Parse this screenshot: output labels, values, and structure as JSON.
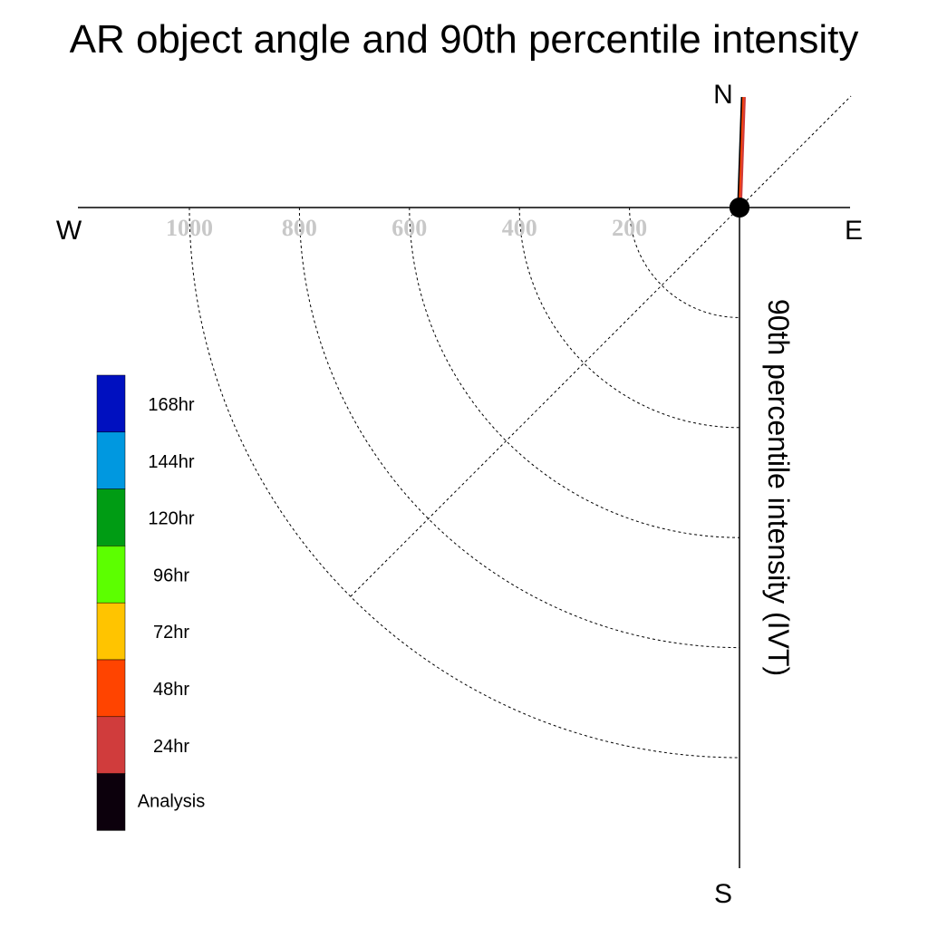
{
  "chart_data": {
    "type": "polar-scatter",
    "title": "AR object angle and 90th percentile intensity",
    "radial_label": "90th percentile intensity (IVT)",
    "compass": {
      "north": "N",
      "east": "E",
      "south": "S",
      "west": "W"
    },
    "radial_ticks": [
      200,
      400,
      600,
      800,
      1000
    ],
    "radial_tick_labels": [
      "200",
      "400",
      "600",
      "800",
      "1000"
    ],
    "radial_max": 1000,
    "diagonal_ref_angle_deg": 45,
    "legend": [
      {
        "label": "168hr",
        "color": "#0010c0"
      },
      {
        "label": "144hr",
        "color": "#0098e0"
      },
      {
        "label": "120hr",
        "color": "#009c14"
      },
      {
        "label": "96hr",
        "color": "#5cff00"
      },
      {
        "label": "72hr",
        "color": "#ffc400"
      },
      {
        "label": "48hr",
        "color": "#ff4400"
      },
      {
        "label": "24hr",
        "color": "#d03c3c"
      },
      {
        "label": "Analysis",
        "color": "#0c000c"
      }
    ],
    "series": [
      {
        "name": "Analysis",
        "angle_deg": 88,
        "intensity": 0,
        "color": "#000000"
      },
      {
        "name": "48hr",
        "angle_deg": 88,
        "intensity": 0,
        "color": "#ff4400"
      },
      {
        "name": "24hr",
        "angle_deg": 88,
        "intensity": 0,
        "color": "#d03c3c"
      }
    ]
  }
}
